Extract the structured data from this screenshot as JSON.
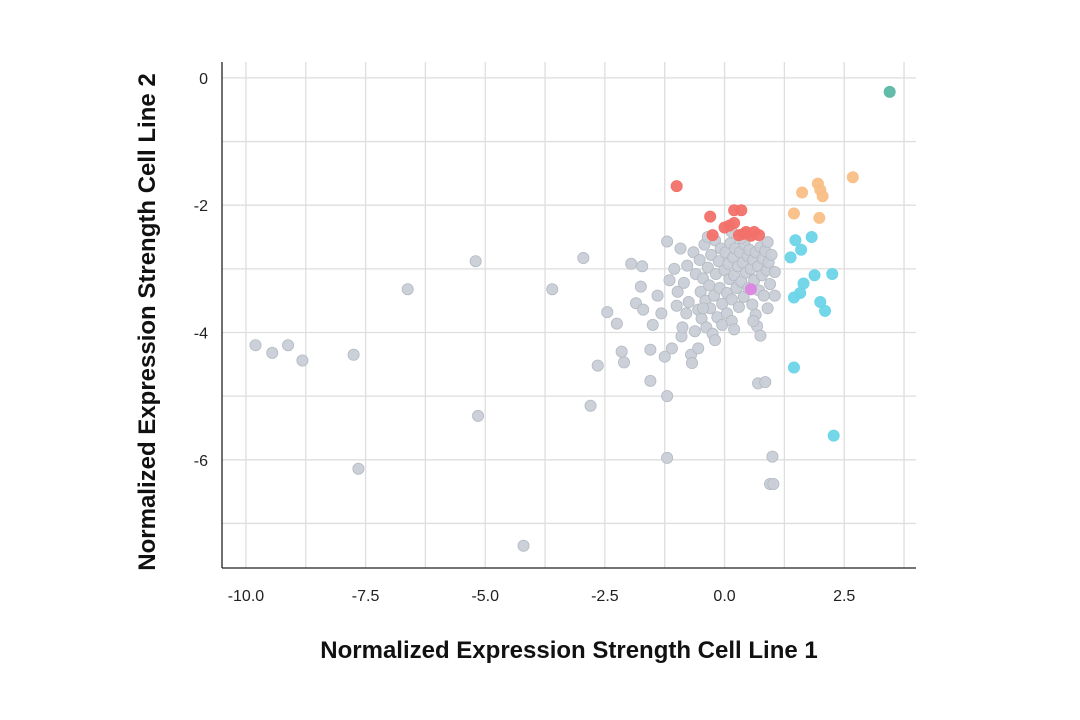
{
  "chart_data": {
    "type": "scatter",
    "title": "",
    "xlabel": "Normalized Expression Strength Cell Line 1",
    "ylabel": "Normalized Expression Strength Cell Line 2",
    "xlim": [
      -10.5,
      4.0
    ],
    "ylim": [
      -7.7,
      0.25
    ],
    "x_ticks": [
      -10.0,
      -7.5,
      -5.0,
      -2.5,
      0.0,
      2.5
    ],
    "x_tick_labels": [
      "-10.0",
      "-7.5",
      "-5.0",
      "-2.5",
      "0.0",
      "2.5"
    ],
    "y_ticks": [
      0,
      -2,
      -4,
      -6
    ],
    "y_tick_labels": [
      "0",
      "-2",
      "-4",
      "-6"
    ],
    "x_grid": [
      -10.0,
      -8.75,
      -7.5,
      -6.25,
      -5.0,
      -3.75,
      -2.5,
      -1.25,
      0.0,
      1.25,
      2.5,
      3.75
    ],
    "y_grid": [
      0,
      -1,
      -2,
      -3,
      -4,
      -5,
      -6,
      -7
    ],
    "grid": true,
    "legend": "none",
    "colors": {
      "gray": "#c9ced6",
      "red": "#f2716a",
      "orange": "#f9bf87",
      "cyan": "#6cd5e8",
      "teal": "#5bb8a4",
      "magenta": "#dc86e2"
    },
    "series": [
      {
        "color": "gray",
        "points": [
          [
            -9.8,
            -4.2
          ],
          [
            -9.45,
            -4.32
          ],
          [
            -9.12,
            -4.2
          ],
          [
            -8.82,
            -4.44
          ],
          [
            -7.75,
            -4.35
          ],
          [
            -7.65,
            -6.14
          ],
          [
            -6.62,
            -3.32
          ],
          [
            -5.2,
            -2.88
          ],
          [
            -5.15,
            -5.31
          ],
          [
            -4.2,
            -7.35
          ],
          [
            -3.6,
            -3.32
          ],
          [
            -2.95,
            -2.83
          ],
          [
            -2.8,
            -5.15
          ],
          [
            -2.65,
            -4.52
          ],
          [
            -2.45,
            -3.68
          ],
          [
            -2.25,
            -3.86
          ],
          [
            -2.15,
            -4.3
          ],
          [
            -2.1,
            -4.47
          ],
          [
            -1.95,
            -2.92
          ],
          [
            -1.85,
            -3.54
          ],
          [
            -1.75,
            -3.28
          ],
          [
            -1.72,
            -2.96
          ],
          [
            -1.7,
            -3.64
          ],
          [
            -1.55,
            -4.27
          ],
          [
            -1.55,
            -4.76
          ],
          [
            -1.5,
            -3.88
          ],
          [
            -1.4,
            -3.42
          ],
          [
            -1.32,
            -3.7
          ],
          [
            -1.25,
            -4.38
          ],
          [
            -1.2,
            -5.0
          ],
          [
            -1.2,
            -5.97
          ],
          [
            -1.2,
            -2.57
          ],
          [
            -1.15,
            -3.18
          ],
          [
            -1.1,
            -4.25
          ],
          [
            -1.05,
            -3.0
          ],
          [
            -1.0,
            -3.58
          ],
          [
            -0.98,
            -3.36
          ],
          [
            -0.92,
            -2.68
          ],
          [
            -0.9,
            -4.06
          ],
          [
            -0.88,
            -3.92
          ],
          [
            -0.85,
            -3.22
          ],
          [
            -0.8,
            -3.7
          ],
          [
            -0.78,
            -2.95
          ],
          [
            -0.75,
            -3.52
          ],
          [
            -0.7,
            -4.35
          ],
          [
            -0.68,
            -4.48
          ],
          [
            -0.65,
            -2.74
          ],
          [
            -0.62,
            -3.98
          ],
          [
            -0.6,
            -3.08
          ],
          [
            -0.55,
            -3.64
          ],
          [
            -0.55,
            -4.25
          ],
          [
            -0.52,
            -2.86
          ],
          [
            -0.5,
            -3.36
          ],
          [
            -0.48,
            -3.78
          ],
          [
            -0.45,
            -3.15
          ],
          [
            -0.42,
            -2.62
          ],
          [
            -0.4,
            -3.5
          ],
          [
            -0.38,
            -3.92
          ],
          [
            -0.35,
            -2.98
          ],
          [
            -0.32,
            -3.26
          ],
          [
            -0.3,
            -3.62
          ],
          [
            -0.28,
            -2.78
          ],
          [
            -0.25,
            -4.02
          ],
          [
            -0.22,
            -3.42
          ],
          [
            -0.2,
            -4.12
          ],
          [
            -0.2,
            -2.55
          ],
          [
            -0.18,
            -3.08
          ],
          [
            -0.15,
            -3.76
          ],
          [
            -0.12,
            -2.88
          ],
          [
            -0.1,
            -3.3
          ],
          [
            -0.08,
            -2.68
          ],
          [
            -0.05,
            -3.55
          ],
          [
            -0.05,
            -3.88
          ],
          [
            0.0,
            -3.02
          ],
          [
            0.02,
            -2.74
          ],
          [
            0.05,
            -3.38
          ],
          [
            0.05,
            -3.7
          ],
          [
            0.08,
            -2.92
          ],
          [
            0.1,
            -3.16
          ],
          [
            0.12,
            -2.6
          ],
          [
            0.15,
            -3.48
          ],
          [
            0.15,
            -3.82
          ],
          [
            0.18,
            -2.82
          ],
          [
            0.2,
            -3.1
          ],
          [
            0.22,
            -2.68
          ],
          [
            0.25,
            -3.3
          ],
          [
            0.28,
            -2.96
          ],
          [
            0.3,
            -3.6
          ],
          [
            0.32,
            -2.74
          ],
          [
            0.35,
            -3.2
          ],
          [
            0.38,
            -2.9
          ],
          [
            0.4,
            -3.44
          ],
          [
            0.42,
            -2.62
          ],
          [
            0.45,
            -3.06
          ],
          [
            0.48,
            -2.8
          ],
          [
            0.5,
            -3.3
          ],
          [
            0.52,
            -2.7
          ],
          [
            0.55,
            -3.0
          ],
          [
            0.58,
            -3.56
          ],
          [
            0.6,
            -2.86
          ],
          [
            0.62,
            -3.18
          ],
          [
            0.65,
            -2.74
          ],
          [
            0.65,
            -3.72
          ],
          [
            0.68,
            -3.9
          ],
          [
            0.7,
            -2.96
          ],
          [
            0.72,
            -3.34
          ],
          [
            0.75,
            -2.66
          ],
          [
            0.78,
            -3.1
          ],
          [
            0.8,
            -2.84
          ],
          [
            0.82,
            -3.42
          ],
          [
            0.85,
            -2.72
          ],
          [
            0.88,
            -3.02
          ],
          [
            0.9,
            -3.62
          ],
          [
            0.92,
            -2.9
          ],
          [
            0.95,
            -3.24
          ],
          [
            0.75,
            -4.05
          ],
          [
            0.7,
            -4.8
          ],
          [
            0.85,
            -4.78
          ],
          [
            1.0,
            -5.95
          ],
          [
            0.95,
            -6.38
          ],
          [
            1.02,
            -6.38
          ],
          [
            0.9,
            -2.58
          ],
          [
            0.98,
            -2.78
          ],
          [
            1.05,
            -3.05
          ],
          [
            0.15,
            -2.42
          ],
          [
            0.35,
            -2.52
          ],
          [
            0.55,
            -2.45
          ],
          [
            -0.35,
            -2.5
          ],
          [
            1.05,
            -3.42
          ],
          [
            0.6,
            -3.82
          ],
          [
            0.2,
            -3.95
          ],
          [
            -0.45,
            -3.62
          ]
        ]
      },
      {
        "color": "red",
        "points": [
          [
            -1.0,
            -1.7
          ],
          [
            -0.3,
            -2.18
          ],
          [
            -0.25,
            -2.47
          ],
          [
            0.0,
            -2.35
          ],
          [
            0.1,
            -2.32
          ],
          [
            0.2,
            -2.28
          ],
          [
            0.2,
            -2.08
          ],
          [
            0.35,
            -2.08
          ],
          [
            0.3,
            -2.47
          ],
          [
            0.4,
            -2.45
          ],
          [
            0.45,
            -2.42
          ],
          [
            0.55,
            -2.48
          ],
          [
            0.62,
            -2.42
          ],
          [
            0.72,
            -2.47
          ]
        ]
      },
      {
        "color": "orange",
        "points": [
          [
            1.45,
            -2.13
          ],
          [
            1.62,
            -1.8
          ],
          [
            1.95,
            -1.66
          ],
          [
            2.0,
            -1.76
          ],
          [
            2.05,
            -1.86
          ],
          [
            1.98,
            -2.2
          ],
          [
            2.68,
            -1.56
          ]
        ]
      },
      {
        "color": "cyan",
        "points": [
          [
            1.48,
            -2.55
          ],
          [
            1.82,
            -2.5
          ],
          [
            1.6,
            -2.7
          ],
          [
            1.38,
            -2.82
          ],
          [
            1.88,
            -3.1
          ],
          [
            2.25,
            -3.08
          ],
          [
            1.65,
            -3.23
          ],
          [
            1.58,
            -3.38
          ],
          [
            1.45,
            -3.45
          ],
          [
            2.0,
            -3.52
          ],
          [
            2.1,
            -3.66
          ],
          [
            1.45,
            -4.55
          ],
          [
            2.28,
            -5.62
          ]
        ]
      },
      {
        "color": "teal",
        "points": [
          [
            3.45,
            -0.22
          ]
        ]
      },
      {
        "color": "magenta",
        "points": [
          [
            0.55,
            -3.32
          ]
        ]
      }
    ]
  }
}
